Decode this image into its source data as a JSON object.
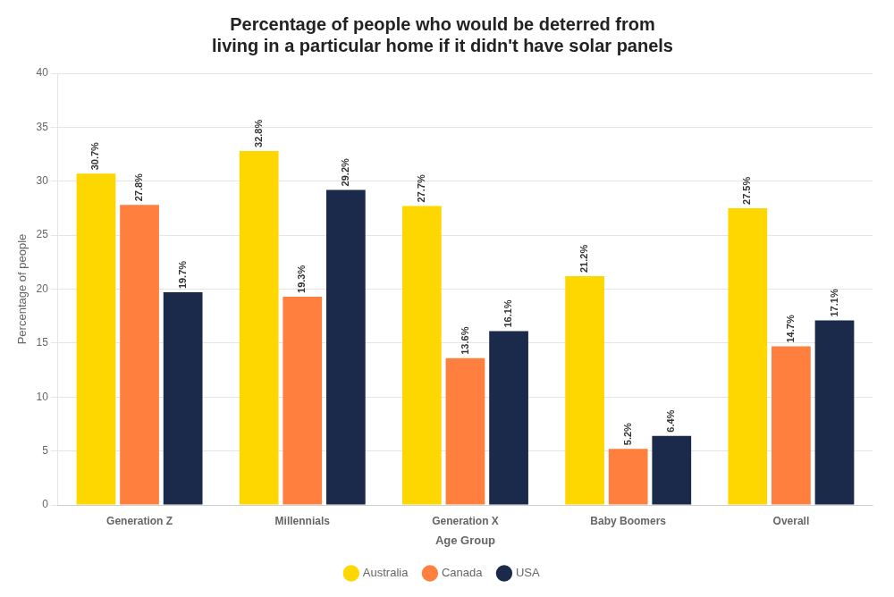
{
  "chart_data": {
    "type": "bar",
    "title": "Percentage of people who would be deterred from\nliving in a particular home if it didn't have solar panels",
    "categories": [
      "Generation Z",
      "Millennials",
      "Generation X",
      "Baby Boomers",
      "Overall"
    ],
    "series": [
      {
        "name": "Australia",
        "color": "#FFD700",
        "values": [
          30.7,
          32.8,
          27.7,
          21.2,
          27.5
        ],
        "value_labels": [
          "30.7%",
          "32.8%",
          "27.7%",
          "21.2%",
          "27.5%"
        ]
      },
      {
        "name": "Canada",
        "color": "#FF7F3F",
        "values": [
          27.8,
          19.3,
          13.6,
          5.2,
          14.7
        ],
        "value_labels": [
          "27.8%",
          "19.3%",
          "13.6%",
          "5.2%",
          "14.7%"
        ]
      },
      {
        "name": "USA",
        "color": "#1B2A4A",
        "values": [
          19.7,
          29.2,
          16.1,
          6.4,
          17.1
        ],
        "value_labels": [
          "19.7%",
          "29.2%",
          "16.1%",
          "6.4%",
          "17.1%"
        ]
      }
    ],
    "xlabel": "Age Group",
    "ylabel": "Percentage of people",
    "ylim": [
      0,
      40
    ],
    "yticks": [
      0,
      5,
      10,
      15,
      20,
      25,
      30,
      35,
      40
    ],
    "grid": true,
    "legend": "bottom",
    "data_labels": true
  }
}
